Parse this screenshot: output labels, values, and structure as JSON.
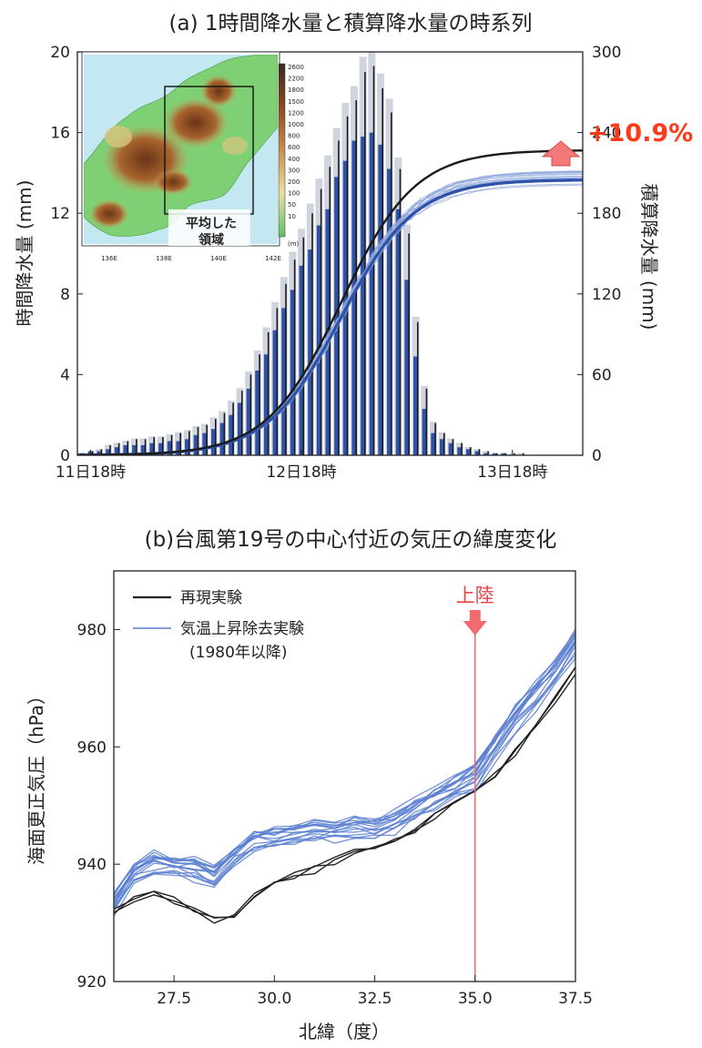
{
  "chart_data": [
    {
      "type": "bar",
      "title": "(a) 1時間降水量と積算降水量の時系列",
      "ylabel": "時間降水量 (mm)",
      "y2label": "積算降水量 (mm)",
      "ylim": [
        0,
        20
      ],
      "y2lim": [
        0,
        300
      ],
      "yticks": [
        "0",
        "4",
        "8",
        "12",
        "16",
        "20"
      ],
      "y2ticks": [
        "0",
        "60",
        "120",
        "180",
        "240",
        "300"
      ],
      "xticks": [
        "11日18時",
        "12日18時",
        "13日18時"
      ],
      "x_hours_from_11d18h": [
        -1,
        0,
        1,
        2,
        3,
        4,
        5,
        6,
        7,
        8,
        9,
        10,
        11,
        12,
        13,
        14,
        15,
        16,
        17,
        18,
        19,
        20,
        21,
        22,
        23,
        24,
        25,
        26,
        27,
        28,
        29,
        30,
        31,
        32,
        33,
        34,
        35,
        36,
        37,
        38,
        39,
        40,
        41,
        42,
        43,
        44,
        45,
        46,
        47,
        48,
        49,
        50,
        51
      ],
      "series": [
        {
          "name": "再現実験",
          "values": [
            0.1,
            0.2,
            0.3,
            0.5,
            0.6,
            0.7,
            0.8,
            0.8,
            0.9,
            0.9,
            1.0,
            1.1,
            1.2,
            1.4,
            1.5,
            1.8,
            2.1,
            2.6,
            3.2,
            4.0,
            5.0,
            6.1,
            7.3,
            8.5,
            9.7,
            10.8,
            12.0,
            13.2,
            14.3,
            15.6,
            16.8,
            17.6,
            19.0,
            19.3,
            18.2,
            17.0,
            14.2,
            11.0,
            6.6,
            3.3,
            1.6,
            1.1,
            0.8,
            0.6,
            0.4,
            0.3,
            0.2,
            0.1,
            0.1,
            0.1,
            0.1,
            0.0,
            0.0
          ]
        },
        {
          "name": "気温上昇除去実験",
          "values": [
            0.1,
            0.2,
            0.2,
            0.3,
            0.4,
            0.5,
            0.5,
            0.5,
            0.6,
            0.6,
            0.7,
            0.7,
            0.8,
            1.0,
            1.1,
            1.3,
            1.6,
            2.0,
            2.6,
            3.3,
            4.2,
            5.0,
            6.2,
            7.3,
            8.2,
            9.4,
            10.2,
            11.4,
            12.2,
            13.8,
            14.6,
            15.6,
            15.8,
            16.0,
            15.4,
            14.2,
            12.2,
            8.7,
            4.9,
            2.3,
            1.1,
            0.8,
            0.6,
            0.4,
            0.3,
            0.2,
            0.1,
            0.1,
            0.1,
            0.0,
            0.0,
            0.0,
            0.0
          ]
        }
      ],
      "cumulative": [
        {
          "name": "再現実験",
          "final": 227
        },
        {
          "name": "気温上昇除去実験",
          "final": 205
        }
      ],
      "annotation": "+10.9%",
      "inset": {
        "label_line1": "平均した",
        "label_line2": "領域",
        "xticks": [
          "136E",
          "138E",
          "140E",
          "142E"
        ],
        "colorbar_ticks": [
          "2600",
          "2200",
          "1800",
          "1500",
          "1200",
          "1000",
          "800",
          "600",
          "400",
          "300",
          "200",
          "100",
          "50",
          "10"
        ],
        "colorbar_unit": "(m)"
      }
    },
    {
      "type": "line",
      "title": "(b)台風第19号の中心付近の気圧の緯度変化",
      "xlabel": "北緯（度）",
      "ylabel": "海面更正気圧（hPa）",
      "xlim": [
        26,
        37.5
      ],
      "ylim": [
        920,
        990
      ],
      "xticks": [
        "27.5",
        "30.0",
        "32.5",
        "35.0",
        "37.5"
      ],
      "yticks": [
        "920",
        "940",
        "960",
        "980"
      ],
      "legend": [
        {
          "label": "再現実験",
          "color": "#222222"
        },
        {
          "label": "気温上昇除去実験",
          "color": "#5b7fd0",
          "sublabel": "(1980年以降)"
        }
      ],
      "landfall_label": "上陸",
      "landfall_lat": 35.0,
      "series": [
        {
          "name": "再現実験",
          "x": [
            26.0,
            26.5,
            27.0,
            27.5,
            28.0,
            28.5,
            29.0,
            29.5,
            30.0,
            30.5,
            31.0,
            31.5,
            32.0,
            32.5,
            33.0,
            33.5,
            34.0,
            34.5,
            35.0,
            35.5,
            36.0,
            36.5,
            37.0,
            37.5
          ],
          "y": [
            932,
            934,
            935,
            934,
            932,
            930.5,
            931,
            935,
            937,
            938,
            939,
            940.5,
            942,
            943,
            944.5,
            946,
            948,
            950,
            952,
            955,
            959,
            963,
            968,
            973
          ]
        },
        {
          "name": "気温上昇除去実験",
          "x": [
            26.0,
            26.5,
            27.0,
            27.5,
            28.0,
            28.5,
            29.0,
            29.5,
            30.0,
            30.5,
            31.0,
            31.5,
            32.0,
            32.5,
            33.0,
            33.5,
            34.0,
            34.5,
            35.0,
            35.5,
            36.0,
            36.5,
            37.0,
            37.5
          ],
          "y": [
            934,
            939,
            941,
            940.5,
            940,
            938.5,
            942,
            944.5,
            945,
            946,
            946.5,
            946.5,
            947,
            947,
            948,
            950,
            952,
            954,
            956,
            961,
            966,
            970,
            974,
            979
          ]
        }
      ]
    }
  ]
}
